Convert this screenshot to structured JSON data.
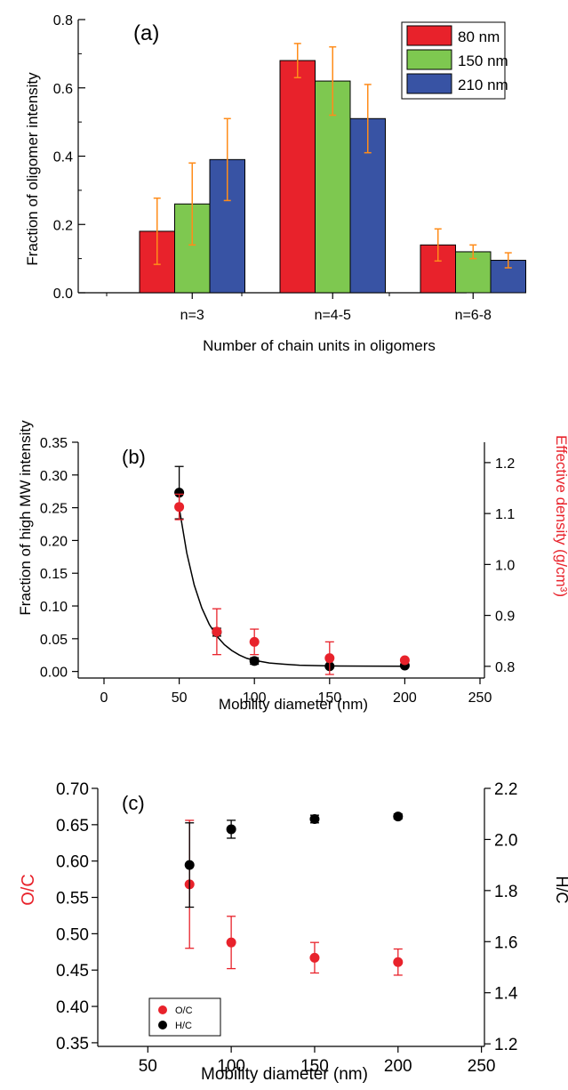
{
  "chart_data": [
    {
      "type": "bar",
      "panel_label": "(a)",
      "xlabel": "Number of chain units in oligomers",
      "ylabel": "Fraction of oligomer intensity",
      "ylim": [
        0,
        0.8
      ],
      "yticks": [
        "0.0",
        "0.2",
        "0.4",
        "0.6",
        "0.8"
      ],
      "categories": [
        "n=3",
        "n=4-5",
        "n=6-8"
      ],
      "legend_position": "top-right",
      "error_bar_color": "#ff8c1a",
      "series": [
        {
          "name": "80 nm",
          "color": "#e8222b",
          "values": [
            0.18,
            0.68,
            0.14
          ],
          "errors": [
            0.097,
            0.05,
            0.047
          ]
        },
        {
          "name": "150 nm",
          "color": "#7ec850",
          "values": [
            0.26,
            0.62,
            0.12
          ],
          "errors": [
            0.12,
            0.1,
            0.02
          ]
        },
        {
          "name": "210 nm",
          "color": "#3853a4",
          "values": [
            0.39,
            0.51,
            0.095
          ],
          "errors": [
            0.12,
            0.1,
            0.022
          ]
        }
      ]
    },
    {
      "type": "scatter",
      "panel_label": "(b)",
      "xlabel": "Mobility diameter (nm)",
      "ylabel": "Fraction of high MW intensity",
      "y2label": "Effective density (g/cm³)",
      "xlim": [
        0,
        250
      ],
      "ylim": [
        -0.01,
        0.35
      ],
      "y2lim": [
        0.777,
        1.24
      ],
      "xticks": [
        "0",
        "50",
        "100",
        "150",
        "200",
        "250"
      ],
      "yticks": [
        "0.00",
        "0.05",
        "0.10",
        "0.15",
        "0.20",
        "0.25",
        "0.30",
        "0.35"
      ],
      "y2ticks": [
        "0.8",
        "0.9",
        "1.0",
        "1.1",
        "1.2"
      ],
      "series": [
        {
          "axis": "left",
          "color": "#000000",
          "x": [
            50,
            75,
            100,
            150,
            200
          ],
          "y": [
            0.273,
            0.06,
            0.016,
            0.008,
            0.009
          ],
          "errors": [
            0.04,
            0.006,
            0.005,
            0.002,
            0.002
          ]
        },
        {
          "axis": "right",
          "color": "#e8222b",
          "x": [
            50,
            75,
            100,
            150,
            200
          ],
          "y": [
            1.113,
            0.868,
            0.848,
            0.816,
            0.812
          ],
          "errors": [
            0.025,
            0.045,
            0.025,
            0.032,
            0.003
          ]
        }
      ],
      "fit": {
        "color": "#000000",
        "x": [
          50,
          55,
          60,
          65,
          70,
          75,
          80,
          85,
          90,
          95,
          100,
          110,
          120,
          130,
          140,
          150,
          175,
          200
        ],
        "y": [
          0.25,
          0.181,
          0.132,
          0.097,
          0.072,
          0.054,
          0.041,
          0.032,
          0.025,
          0.02,
          0.017,
          0.013,
          0.011,
          0.0095,
          0.009,
          0.0085,
          0.0082,
          0.008
        ]
      }
    },
    {
      "type": "scatter",
      "panel_label": "(c)",
      "xlabel": "Mobility diameter (nm)",
      "ylabel": "O/C",
      "y2label": "H/C",
      "xlim": [
        20,
        255
      ],
      "ylim": [
        0.345,
        0.7
      ],
      "y2lim": [
        1.19,
        2.2
      ],
      "xticks": [
        "50",
        "100",
        "150",
        "200",
        "250"
      ],
      "yticks": [
        "0.35",
        "0.40",
        "0.45",
        "0.50",
        "0.55",
        "0.60",
        "0.65",
        "0.70"
      ],
      "y2ticks": [
        "1.2",
        "1.4",
        "1.6",
        "1.8",
        "2.0",
        "2.2"
      ],
      "legend_position": "bottom-left",
      "series": [
        {
          "name": "O/C",
          "axis": "left",
          "color": "#e8222b",
          "x": [
            75,
            100,
            150,
            200
          ],
          "y": [
            0.568,
            0.488,
            0.467,
            0.461
          ],
          "errors": [
            0.088,
            0.036,
            0.021,
            0.018
          ]
        },
        {
          "name": "H/C",
          "axis": "right",
          "color": "#000000",
          "x": [
            75,
            100,
            150,
            200
          ],
          "y": [
            1.9,
            2.04,
            2.08,
            2.09
          ],
          "errors": [
            0.165,
            0.035,
            0.015,
            0.01
          ]
        }
      ]
    }
  ]
}
